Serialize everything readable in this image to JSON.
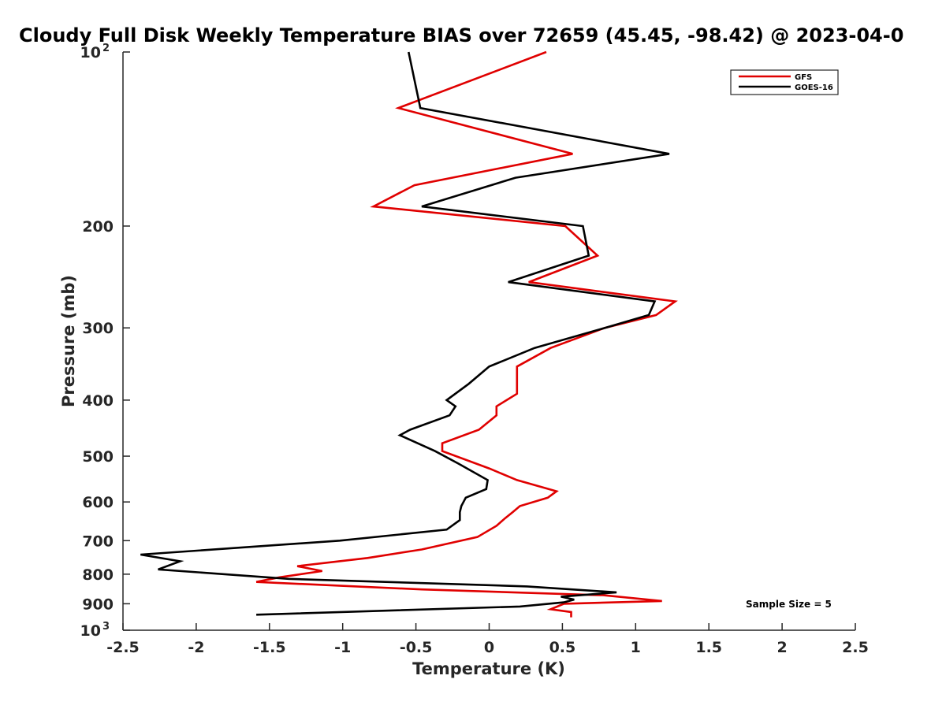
{
  "chart_data": {
    "type": "line",
    "title": "Cloudy Full Disk Weekly Temperature BIAS over 72659 (45.45, -98.42) @ 2023-04-0",
    "xlabel": "Temperature (K)",
    "ylabel": "Pressure (mb)",
    "xlim": [
      -2.5,
      2.5
    ],
    "ylim": [
      100,
      1000
    ],
    "y_scale": "log",
    "y_reversed": true,
    "xticks": [
      "-2.5",
      "-2",
      "-1.5",
      "-1",
      "-0.5",
      "0",
      "0.5",
      "1",
      "1.5",
      "2",
      "2.5"
    ],
    "yticks": [
      {
        "value": 100,
        "label": "10",
        "sup": "2"
      },
      {
        "value": 200,
        "label": "200"
      },
      {
        "value": 300,
        "label": "300"
      },
      {
        "value": 400,
        "label": "400"
      },
      {
        "value": 500,
        "label": "500"
      },
      {
        "value": 600,
        "label": "600"
      },
      {
        "value": 700,
        "label": "700"
      },
      {
        "value": 800,
        "label": "800"
      },
      {
        "value": 900,
        "label": "900"
      },
      {
        "value": 1000,
        "label": "10",
        "sup": "3"
      }
    ],
    "grid": false,
    "legend_position": "top-right",
    "annotation": "Sample Size = 5",
    "series": [
      {
        "name": "GFS",
        "color": "#e00000",
        "points": [
          [
            0.39,
            100
          ],
          [
            -0.62,
            125
          ],
          [
            0.57,
            150
          ],
          [
            -0.51,
            170
          ],
          [
            -0.79,
            185
          ],
          [
            0.52,
            200
          ],
          [
            0.74,
            225
          ],
          [
            0.27,
            250
          ],
          [
            1.27,
            270
          ],
          [
            1.14,
            285
          ],
          [
            0.79,
            300
          ],
          [
            0.42,
            325
          ],
          [
            0.19,
            350
          ],
          [
            0.19,
            375
          ],
          [
            0.19,
            390
          ],
          [
            0.05,
            410
          ],
          [
            0.05,
            425
          ],
          [
            -0.07,
            450
          ],
          [
            -0.32,
            475
          ],
          [
            -0.32,
            490
          ],
          [
            0.0,
            525
          ],
          [
            0.19,
            550
          ],
          [
            0.46,
            575
          ],
          [
            0.4,
            590
          ],
          [
            0.21,
            610
          ],
          [
            0.16,
            625
          ],
          [
            0.11,
            640
          ],
          [
            0.05,
            660
          ],
          [
            -0.08,
            690
          ],
          [
            -0.46,
            725
          ],
          [
            -0.83,
            750
          ],
          [
            -1.31,
            775
          ],
          [
            -1.14,
            790
          ],
          [
            -1.43,
            810
          ],
          [
            -1.59,
            825
          ],
          [
            -0.46,
            850
          ],
          [
            0.78,
            870
          ],
          [
            1.18,
            890
          ],
          [
            0.51,
            900
          ],
          [
            0.42,
            920
          ],
          [
            0.56,
            930
          ],
          [
            0.56,
            950
          ]
        ]
      },
      {
        "name": "GOES-16",
        "color": "#000000",
        "points": [
          [
            -0.55,
            100
          ],
          [
            -0.47,
            125
          ],
          [
            1.23,
            150
          ],
          [
            0.18,
            165
          ],
          [
            -0.46,
            185
          ],
          [
            0.64,
            200
          ],
          [
            0.68,
            225
          ],
          [
            0.13,
            250
          ],
          [
            1.13,
            270
          ],
          [
            1.09,
            285
          ],
          [
            0.79,
            300
          ],
          [
            0.31,
            325
          ],
          [
            0.0,
            350
          ],
          [
            -0.14,
            375
          ],
          [
            -0.29,
            400
          ],
          [
            -0.23,
            410
          ],
          [
            -0.27,
            425
          ],
          [
            -0.54,
            450
          ],
          [
            -0.61,
            460
          ],
          [
            -0.37,
            490
          ],
          [
            -0.21,
            515
          ],
          [
            -0.01,
            550
          ],
          [
            -0.02,
            570
          ],
          [
            -0.16,
            590
          ],
          [
            -0.19,
            610
          ],
          [
            -0.2,
            625
          ],
          [
            -0.2,
            645
          ],
          [
            -0.29,
            670
          ],
          [
            -1.02,
            700
          ],
          [
            -2.38,
            740
          ],
          [
            -2.11,
            760
          ],
          [
            -2.26,
            785
          ],
          [
            -1.37,
            815
          ],
          [
            0.26,
            840
          ],
          [
            0.87,
            860
          ],
          [
            0.49,
            875
          ],
          [
            0.58,
            885
          ],
          [
            0.51,
            895
          ],
          [
            0.21,
            910
          ],
          [
            -1.59,
            940
          ]
        ]
      }
    ]
  }
}
